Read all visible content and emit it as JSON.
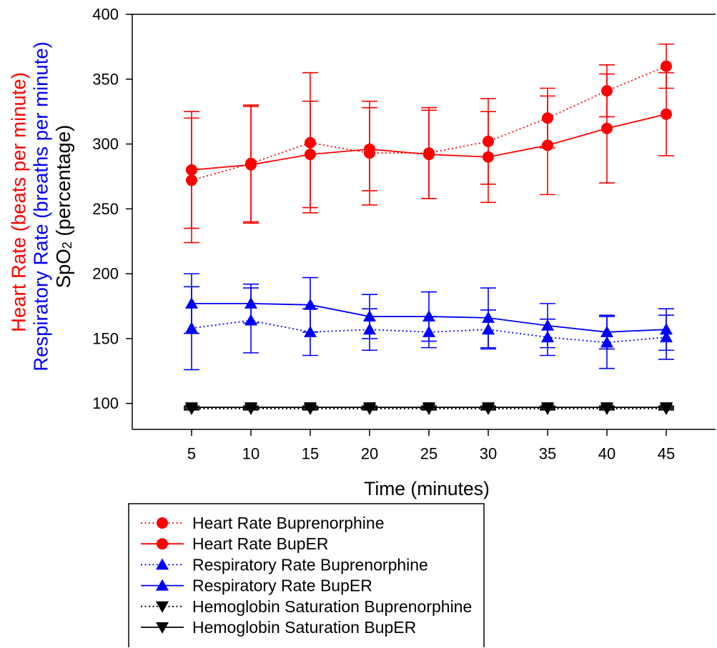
{
  "chart_data": {
    "type": "line",
    "x_label": "Time (minutes)",
    "y_labels": {
      "heart_rate": "Heart Rate (beats per minute)",
      "respiratory_rate": "Respiratory Rate (breaths per minute)",
      "spo2": {
        "base": "SpO",
        "subscript": "2",
        "rest": " (percentage)"
      }
    },
    "y_label_colors": {
      "heart_rate": "#ff0000",
      "respiratory_rate": "#0000ff",
      "spo2": "#000000"
    },
    "x": [
      5,
      10,
      15,
      20,
      25,
      30,
      35,
      40,
      45
    ],
    "x_tick_labels": [
      "5",
      "10",
      "15",
      "20",
      "25",
      "30",
      "35",
      "40",
      "45"
    ],
    "y_ticks": [
      100,
      150,
      200,
      250,
      300,
      350,
      400
    ],
    "y_tick_labels": [
      "100",
      "150",
      "200",
      "250",
      "300",
      "350",
      "400"
    ],
    "xlim": [
      0,
      50
    ],
    "ylim": [
      80,
      400
    ],
    "grid": false,
    "error_bars": true,
    "legend_position": "below plot, bottom-left",
    "series": [
      {
        "name": "Heart Rate Buprenorphine",
        "color": "#ff0000",
        "line_style": "dotted",
        "marker": "circle",
        "y": [
          272,
          285,
          301,
          293,
          293,
          302,
          320,
          341,
          360
        ],
        "error": [
          48,
          45,
          54,
          40,
          35,
          33,
          23,
          20,
          17
        ]
      },
      {
        "name": "Heart Rate BupER",
        "color": "#ff0000",
        "line_style": "solid",
        "marker": "circle",
        "y": [
          280,
          284,
          292,
          296,
          292,
          290,
          299,
          312,
          323
        ],
        "error": [
          45,
          45,
          41,
          32,
          34,
          35,
          38,
          42,
          32
        ]
      },
      {
        "name": "Respiratory Rate Buprenorphine",
        "color": "#0000ff",
        "line_style": "dotted",
        "marker": "triangle-up",
        "y": [
          158,
          164,
          155,
          157,
          155,
          157,
          151,
          147,
          151
        ],
        "error": [
          32,
          25,
          18,
          16,
          12,
          15,
          14,
          20,
          17
        ]
      },
      {
        "name": "Respiratory Rate BupER",
        "color": "#0000ff",
        "line_style": "solid",
        "marker": "triangle-up",
        "y": [
          177,
          177,
          176,
          167,
          167,
          166,
          160,
          155,
          157
        ],
        "error": [
          23,
          15,
          21,
          17,
          19,
          23,
          17,
          13,
          16
        ]
      },
      {
        "name": "Hemoglobin Saturation Buprenorphine",
        "color": "#000000",
        "line_style": "dotted",
        "marker": "triangle-down",
        "y": [
          96,
          96,
          96,
          96,
          96,
          96,
          96,
          96,
          96
        ],
        "error": [
          1,
          1,
          1,
          1,
          1,
          1,
          1,
          1,
          1
        ]
      },
      {
        "name": "Hemoglobin Saturation BupER",
        "color": "#000000",
        "line_style": "solid",
        "marker": "triangle-down",
        "y": [
          97,
          97,
          97,
          97,
          97,
          97,
          97,
          97,
          97
        ],
        "error": [
          1,
          1,
          1,
          1,
          1,
          1,
          1,
          1,
          1
        ]
      }
    ]
  }
}
